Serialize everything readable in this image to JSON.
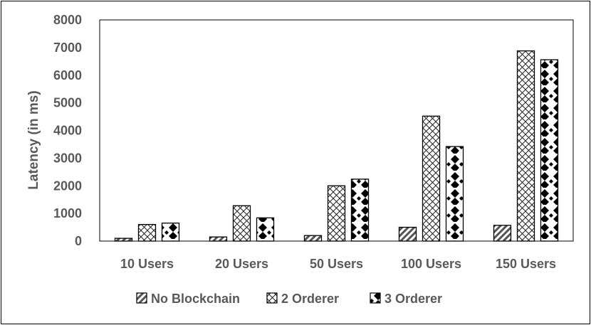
{
  "chart_data": {
    "type": "bar",
    "title": "",
    "xlabel": "",
    "ylabel": "Latency (in ms)",
    "ylim": [
      0,
      8000
    ],
    "yticks": [
      0,
      1000,
      2000,
      3000,
      4000,
      5000,
      6000,
      7000,
      8000
    ],
    "grid": false,
    "legend_position": "bottom",
    "categories": [
      "10 Users",
      "20 Users",
      "50 Users",
      "100 Users",
      "150 Users"
    ],
    "series": [
      {
        "name": "No Blockchain",
        "pattern": "diagonal-stripes",
        "values": [
          100,
          150,
          200,
          500,
          570
        ]
      },
      {
        "name": "2 Orderer",
        "pattern": "crosshatch-diamonds",
        "values": [
          600,
          1280,
          2000,
          4520,
          6880
        ]
      },
      {
        "name": "3 Orderer",
        "pattern": "black-dots-on-white",
        "values": [
          650,
          840,
          2240,
          3420,
          6560
        ]
      }
    ]
  }
}
